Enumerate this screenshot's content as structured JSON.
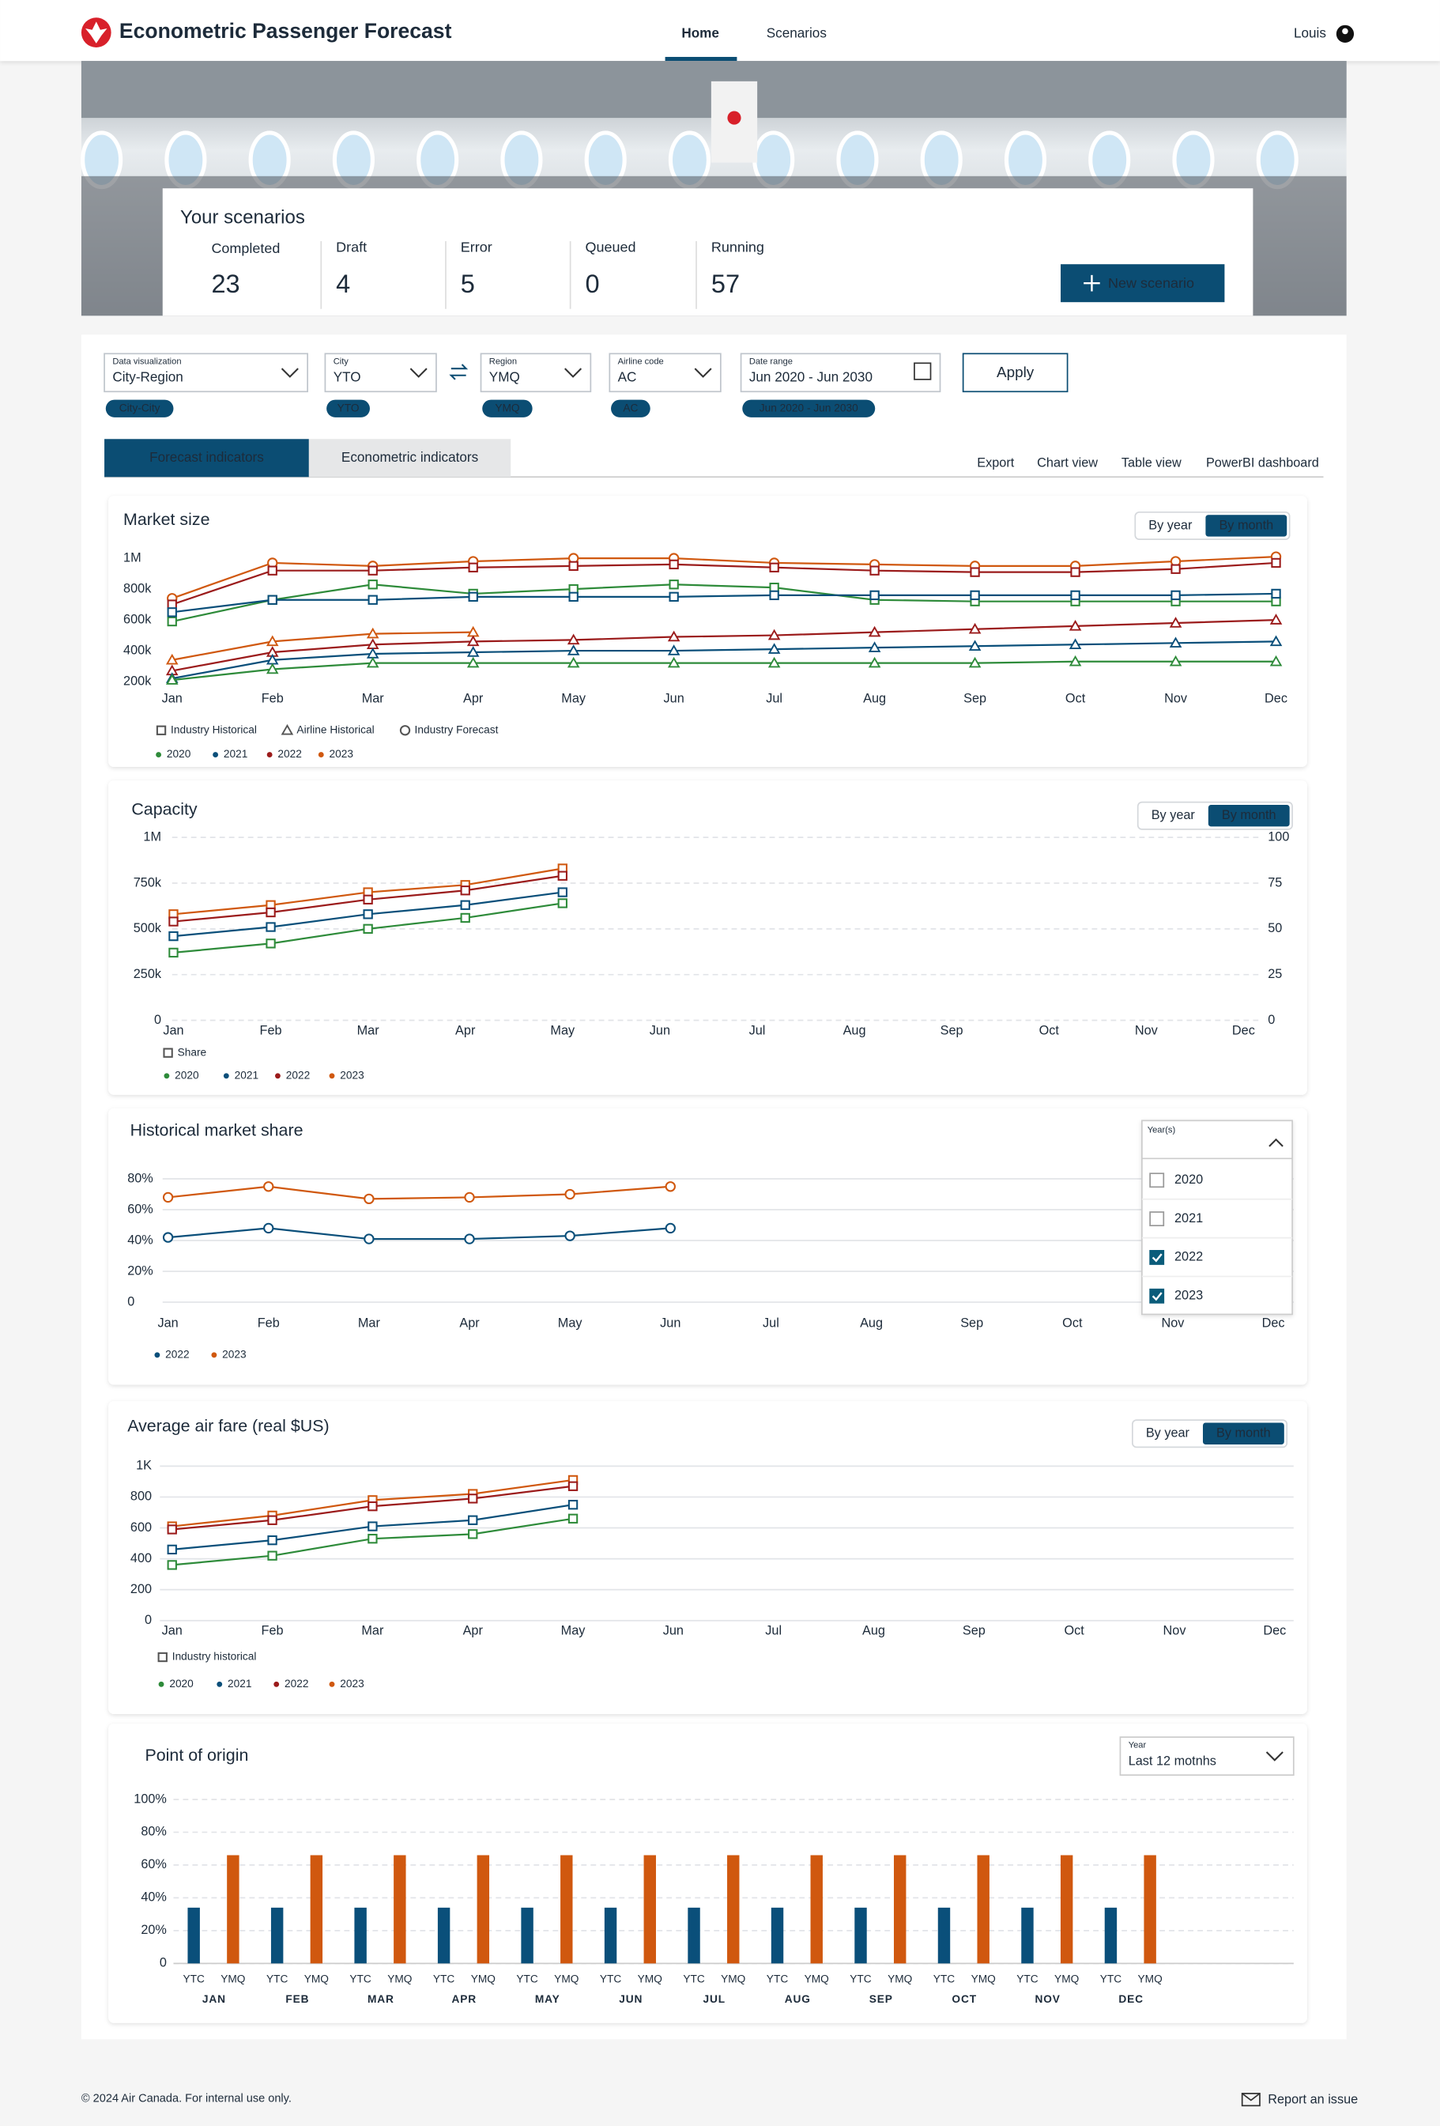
{
  "header": {
    "title": "Econometric Passenger Forecast",
    "nav": [
      "Home",
      "Scenarios"
    ],
    "user": "Louis"
  },
  "scenarios": {
    "title": "Your scenarios",
    "stats": [
      {
        "label": "Completed",
        "value": 23,
        "color": "#2e8b3a"
      },
      {
        "label": "Draft",
        "value": 4,
        "color": "#777777"
      },
      {
        "label": "Error",
        "value": 5,
        "color": "#c8202a"
      },
      {
        "label": "Queued",
        "value": 0,
        "color": "#0b4d73"
      },
      {
        "label": "Running",
        "value": 57,
        "color": "#444444"
      }
    ],
    "button": "New scenario"
  },
  "filters": [
    {
      "label": "Data visualization",
      "value": "City-Region",
      "chip": "City-City"
    },
    {
      "label": "City",
      "value": "YTO",
      "chip": "YTO"
    },
    {
      "label": "Region",
      "value": "YMQ",
      "chip": "YMQ"
    },
    {
      "label": "Airline code",
      "value": "AC",
      "chip": "AC"
    },
    {
      "label": "Date range",
      "value": "Jun 2020 - Jun 2030",
      "chip": "Jun 2020 - Jun 2030"
    }
  ],
  "apply": "Apply",
  "tabs": [
    "Forecast indicators",
    "Econometric indicators"
  ],
  "links": [
    "Export",
    "Chart view",
    "Table view",
    "PowerBI dashboard"
  ],
  "charts": [
    {
      "type": "line",
      "title": "Market size",
      "toggle": [
        "By year",
        "By month"
      ],
      "categories": [
        "Jan",
        "Feb",
        "Mar",
        "Apr",
        "May",
        "Jun",
        "Jul",
        "Aug",
        "Sep",
        "Oct",
        "Nov",
        "Dec"
      ],
      "ylim": [
        200000,
        1000000
      ],
      "yticks": [
        {
          "value": 200000,
          "label": "200k"
        },
        {
          "value": 400000,
          "label": "400k"
        },
        {
          "value": 600000,
          "label": "600k"
        },
        {
          "value": 800000,
          "label": "800k"
        },
        {
          "value": 1000000,
          "label": "1M"
        }
      ],
      "grid": false,
      "shape_legend": [
        {
          "label": "Industry Historical",
          "marker": "square"
        },
        {
          "label": "Airline Historical",
          "marker": "triangle"
        },
        {
          "label": "Industry Forecast",
          "marker": "circle"
        }
      ],
      "year_legend": [
        {
          "label": "2020",
          "color": "#2e8b3a"
        },
        {
          "label": "2021",
          "color": "#0a4f7a"
        },
        {
          "label": "2022",
          "color": "#9b1b1b"
        },
        {
          "label": "2023",
          "color": "#d0580f"
        }
      ],
      "series": [
        {
          "color": "#d0580f",
          "marker": "circle",
          "values": [
            740000,
            970000,
            950000,
            980000,
            1000000,
            1000000,
            970000,
            960000,
            950000,
            950000,
            980000,
            1010000
          ]
        },
        {
          "color": "#9b1b1b",
          "marker": "square",
          "values": [
            700000,
            920000,
            920000,
            940000,
            950000,
            960000,
            940000,
            920000,
            910000,
            910000,
            930000,
            970000
          ]
        },
        {
          "color": "#2e8b3a",
          "marker": "square",
          "values": [
            590000,
            730000,
            830000,
            770000,
            800000,
            830000,
            810000,
            730000,
            720000,
            720000,
            720000,
            720000
          ]
        },
        {
          "color": "#0a4f7a",
          "marker": "square",
          "values": [
            650000,
            730000,
            730000,
            750000,
            750000,
            750000,
            760000,
            760000,
            760000,
            760000,
            760000,
            770000
          ]
        },
        {
          "color": "#d0580f",
          "marker": "triangle",
          "values": [
            340000,
            460000,
            510000,
            520000,
            null,
            null,
            null,
            null,
            null,
            null,
            null,
            null
          ]
        },
        {
          "color": "#9b1b1b",
          "marker": "triangle",
          "values": [
            270000,
            390000,
            440000,
            460000,
            470000,
            490000,
            500000,
            520000,
            540000,
            560000,
            580000,
            600000
          ]
        },
        {
          "color": "#0a4f7a",
          "marker": "triangle",
          "values": [
            220000,
            340000,
            380000,
            390000,
            400000,
            400000,
            410000,
            420000,
            430000,
            440000,
            450000,
            460000
          ]
        },
        {
          "color": "#2e8b3a",
          "marker": "triangle",
          "values": [
            210000,
            280000,
            320000,
            320000,
            320000,
            320000,
            320000,
            320000,
            320000,
            330000,
            330000,
            330000
          ]
        }
      ]
    },
    {
      "type": "line",
      "title": "Capacity",
      "toggle": [
        "By year",
        "By month"
      ],
      "categories": [
        "Jan",
        "Feb",
        "Mar",
        "Apr",
        "May",
        "Jun",
        "Jul",
        "Aug",
        "Sep",
        "Oct",
        "Nov",
        "Dec"
      ],
      "ylim": [
        0,
        1000000
      ],
      "yticks": [
        0,
        {
          "value": 250000,
          "label": "250k"
        },
        {
          "value": 500000,
          "label": "500k"
        },
        {
          "value": 750000,
          "label": "750k"
        },
        {
          "value": 1000000,
          "label": "1M"
        }
      ],
      "y2lim": [
        0,
        100
      ],
      "y2ticks": [
        0,
        25,
        50,
        75,
        100
      ],
      "grid": true,
      "grid_dashed": true,
      "shape_legend": [
        {
          "label": "Share",
          "marker": "square"
        }
      ],
      "year_legend": [
        {
          "label": "2020",
          "color": "#2e8b3a"
        },
        {
          "label": "2021",
          "color": "#0a4f7a"
        },
        {
          "label": "2022",
          "color": "#9b1b1b"
        },
        {
          "label": "2023",
          "color": "#d0580f"
        }
      ],
      "series": [
        {
          "color": "#d0580f",
          "marker": "square",
          "values": [
            580000,
            630000,
            700000,
            740000,
            830000,
            null,
            null,
            null,
            null,
            null,
            null,
            null
          ]
        },
        {
          "color": "#9b1b1b",
          "marker": "square",
          "values": [
            540000,
            590000,
            660000,
            710000,
            790000,
            null,
            null,
            null,
            null,
            null,
            null,
            null
          ]
        },
        {
          "color": "#0a4f7a",
          "marker": "square",
          "values": [
            460000,
            510000,
            580000,
            630000,
            700000,
            null,
            null,
            null,
            null,
            null,
            null,
            null
          ]
        },
        {
          "color": "#2e8b3a",
          "marker": "square",
          "values": [
            370000,
            420000,
            500000,
            560000,
            640000,
            null,
            null,
            null,
            null,
            null,
            null,
            null
          ]
        }
      ]
    },
    {
      "type": "line",
      "title": "Historical market share",
      "categories": [
        "Jan",
        "Feb",
        "Mar",
        "Apr",
        "May",
        "Jun",
        "Jul",
        "Aug",
        "Sep",
        "Oct",
        "Nov",
        "Dec"
      ],
      "ylim": [
        0,
        80
      ],
      "yticks": [
        0,
        {
          "value": 20,
          "label": "20%"
        },
        {
          "value": 40,
          "label": "40%"
        },
        {
          "value": 60,
          "label": "60%"
        },
        {
          "value": 80,
          "label": "80%"
        }
      ],
      "grid": true,
      "grid_dashed": false,
      "year_legend": [
        {
          "label": "2022",
          "color": "#0a4f7a"
        },
        {
          "label": "2023",
          "color": "#d0580f"
        }
      ],
      "dropdown": {
        "label": "Year(s)",
        "options": [
          {
            "label": "2020",
            "checked": false
          },
          {
            "label": "2021",
            "checked": false
          },
          {
            "label": "2022",
            "checked": true
          },
          {
            "label": "2023",
            "checked": true
          }
        ]
      },
      "series": [
        {
          "color": "#d0580f",
          "marker": "circle",
          "values": [
            68,
            75,
            67,
            68,
            70,
            75,
            null,
            null,
            null,
            null,
            null,
            null
          ]
        },
        {
          "color": "#0a4f7a",
          "marker": "circle",
          "values": [
            42,
            48,
            41,
            41,
            43,
            48,
            null,
            null,
            null,
            null,
            null,
            null
          ]
        }
      ]
    },
    {
      "type": "line",
      "title": "Average air fare (real $US)",
      "toggle": [
        "By year",
        "By month"
      ],
      "categories": [
        "Jan",
        "Feb",
        "Mar",
        "Apr",
        "May",
        "Jun",
        "Jul",
        "Aug",
        "Sep",
        "Oct",
        "Nov",
        "Dec"
      ],
      "ylim": [
        0,
        1000
      ],
      "yticks": [
        0,
        200,
        400,
        600,
        800,
        {
          "value": 1000,
          "label": "1K"
        }
      ],
      "grid": true,
      "grid_dashed": false,
      "shape_legend": [
        {
          "label": "Industry historical",
          "marker": "square"
        }
      ],
      "year_legend": [
        {
          "label": "2020",
          "color": "#2e8b3a"
        },
        {
          "label": "2021",
          "color": "#0a4f7a"
        },
        {
          "label": "2022",
          "color": "#9b1b1b"
        },
        {
          "label": "2023",
          "color": "#d0580f"
        }
      ],
      "series": [
        {
          "color": "#d0580f",
          "marker": "square",
          "values": [
            610,
            680,
            780,
            820,
            910,
            null,
            null,
            null,
            null,
            null,
            null,
            null
          ]
        },
        {
          "color": "#9b1b1b",
          "marker": "square",
          "values": [
            590,
            650,
            740,
            790,
            870,
            null,
            null,
            null,
            null,
            null,
            null,
            null
          ]
        },
        {
          "color": "#0a4f7a",
          "marker": "square",
          "values": [
            460,
            520,
            610,
            650,
            750,
            null,
            null,
            null,
            null,
            null,
            null,
            null
          ]
        },
        {
          "color": "#2e8b3a",
          "marker": "square",
          "values": [
            360,
            420,
            530,
            560,
            660,
            null,
            null,
            null,
            null,
            null,
            null,
            null
          ]
        }
      ]
    },
    {
      "type": "bar",
      "title": "Point of origin",
      "dropdown": {
        "label": "Year",
        "value": "Last 12 motnhs"
      },
      "categories": [
        "JAN",
        "FEB",
        "MAR",
        "APR",
        "MAY",
        "JUN",
        "JUL",
        "AUG",
        "SEP",
        "OCT",
        "NOV",
        "DEC"
      ],
      "ylim": [
        0,
        100
      ],
      "yticks": [
        0,
        {
          "value": 20,
          "label": "20%"
        },
        {
          "value": 40,
          "label": "40%"
        },
        {
          "value": 60,
          "label": "60%"
        },
        {
          "value": 80,
          "label": "80%"
        },
        {
          "value": 100,
          "label": "100%"
        }
      ],
      "grid": true,
      "grid_dashed": true,
      "series": [
        {
          "name": "YTC",
          "color": "#0a4f7a",
          "values": [
            34,
            34,
            34,
            34,
            34,
            34,
            34,
            34,
            34,
            34,
            34,
            34
          ]
        },
        {
          "name": "YMQ",
          "color": "#d0580f",
          "values": [
            66,
            66,
            66,
            66,
            66,
            66,
            66,
            66,
            66,
            66,
            66,
            66
          ]
        }
      ]
    }
  ],
  "footer": {
    "copyright": "© 2024 Air Canada. For internal use only.",
    "report": "Report an issue"
  }
}
